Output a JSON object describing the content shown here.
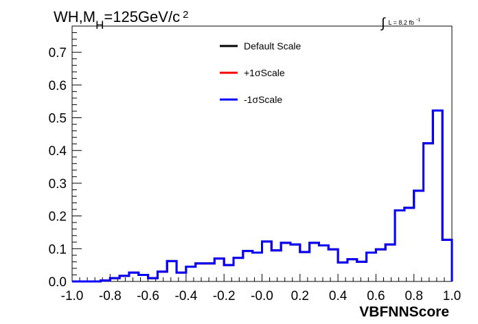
{
  "chart_data": {
    "type": "line",
    "title_main": "WH,M",
    "title_sub": "H",
    "title_rest": "=125GeV/c",
    "title_sup": "2",
    "luminosity": {
      "integral": "∫",
      "text": "L = 8.2 fb",
      "sup": "-1"
    },
    "xlabel": "VBFNNScore",
    "ylabel": "",
    "xlim": [
      -1.0,
      1.0
    ],
    "ylim": [
      0.0,
      0.78
    ],
    "x_ticks": [
      "-1.0",
      "-0.8",
      "-0.6",
      "-0.4",
      "-0.2",
      "-0.0",
      "0.2",
      "0.4",
      "0.6",
      "0.8",
      "1.0"
    ],
    "x_tick_values": [
      -1.0,
      -0.8,
      -0.6,
      -0.4,
      -0.2,
      0.0,
      0.2,
      0.4,
      0.6,
      0.8,
      1.0
    ],
    "y_ticks": [
      "0.0",
      "0.1",
      "0.2",
      "0.3",
      "0.4",
      "0.5",
      "0.6",
      "0.7"
    ],
    "y_tick_values": [
      0.0,
      0.1,
      0.2,
      0.3,
      0.4,
      0.5,
      0.6,
      0.7
    ],
    "bin_edges": [
      -1.0,
      -0.95,
      -0.9,
      -0.85,
      -0.8,
      -0.75,
      -0.7,
      -0.65,
      -0.6,
      -0.55,
      -0.5,
      -0.45,
      -0.4,
      -0.35,
      -0.3,
      -0.25,
      -0.2,
      -0.15,
      -0.1,
      -0.05,
      0.0,
      0.05,
      0.1,
      0.15,
      0.2,
      0.25,
      0.3,
      0.35,
      0.4,
      0.45,
      0.5,
      0.55,
      0.6,
      0.65,
      0.7,
      0.75,
      0.8,
      0.85,
      0.9,
      0.95,
      1.0
    ],
    "legend_position": "top-center",
    "series": [
      {
        "name": "Default Scale",
        "color": "#000000",
        "values": [
          0.0,
          0.0,
          0.0,
          0.003,
          0.01,
          0.017,
          0.027,
          0.02,
          0.01,
          0.03,
          0.062,
          0.027,
          0.045,
          0.055,
          0.055,
          0.07,
          0.05,
          0.072,
          0.093,
          0.088,
          0.122,
          0.095,
          0.118,
          0.113,
          0.09,
          0.118,
          0.11,
          0.098,
          0.058,
          0.068,
          0.06,
          0.088,
          0.098,
          0.113,
          0.217,
          0.225,
          0.277,
          0.422,
          0.522,
          0.127
        ]
      },
      {
        "name": "+1σScale",
        "color": "#ff0000",
        "values": [
          0.0,
          0.0,
          0.0,
          0.003,
          0.01,
          0.017,
          0.027,
          0.02,
          0.01,
          0.03,
          0.062,
          0.027,
          0.045,
          0.055,
          0.055,
          0.07,
          0.05,
          0.072,
          0.093,
          0.088,
          0.122,
          0.095,
          0.118,
          0.113,
          0.09,
          0.118,
          0.11,
          0.098,
          0.058,
          0.068,
          0.06,
          0.088,
          0.098,
          0.113,
          0.217,
          0.225,
          0.277,
          0.422,
          0.522,
          0.127
        ]
      },
      {
        "name": "-1σScale",
        "color": "#0000ff",
        "values": [
          0.0,
          0.0,
          0.0,
          0.003,
          0.01,
          0.017,
          0.027,
          0.02,
          0.01,
          0.03,
          0.062,
          0.027,
          0.045,
          0.055,
          0.055,
          0.07,
          0.05,
          0.072,
          0.093,
          0.088,
          0.122,
          0.095,
          0.118,
          0.113,
          0.09,
          0.118,
          0.11,
          0.098,
          0.058,
          0.068,
          0.06,
          0.088,
          0.098,
          0.113,
          0.217,
          0.225,
          0.277,
          0.422,
          0.522,
          0.127
        ]
      }
    ],
    "grid": false
  }
}
